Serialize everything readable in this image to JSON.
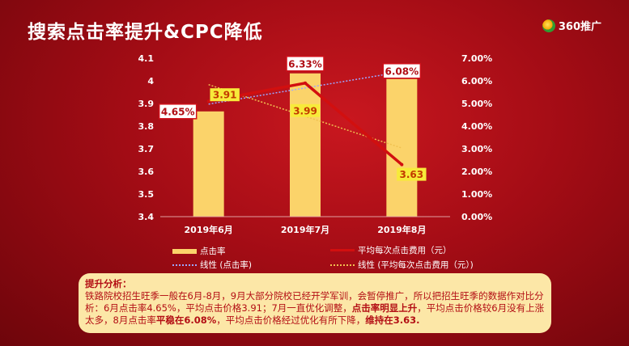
{
  "title": "搜索点击率提升&CPC降低",
  "brand": {
    "icon": "360-logo-icon",
    "label": "360推广"
  },
  "chart_data": {
    "type": "bar",
    "categories": [
      "2019年6月",
      "2019年7月",
      "2019年8月"
    ],
    "series": [
      {
        "name": "点击率",
        "type": "bar",
        "values": [
          4.65,
          6.33,
          6.08
        ],
        "labels": [
          "4.65%",
          "6.33%",
          "6.08%"
        ],
        "color": "#fbd36a"
      },
      {
        "name": "平均每次点击费用（元）",
        "type": "line",
        "values": [
          3.91,
          3.99,
          3.63
        ],
        "labels": [
          "3.91",
          "3.99",
          "3.63"
        ],
        "color": "#d20f0f"
      }
    ],
    "trendlines": [
      {
        "name": "线性 (点击率)",
        "color": "#9da6ff"
      },
      {
        "name": "线性 (平均每次点击费用（元）)",
        "color": "#f0c050"
      }
    ],
    "y_left": {
      "ticks": [
        "3.4",
        "3.5",
        "3.6",
        "3.7",
        "3.8",
        "3.9",
        "4",
        "4.1"
      ],
      "range": [
        3.4,
        4.1
      ]
    },
    "y_right": {
      "ticks": [
        "0.00%",
        "1.00%",
        "2.00%",
        "3.00%",
        "4.00%",
        "5.00%",
        "6.00%",
        "7.00%"
      ],
      "range": [
        0,
        7
      ]
    },
    "legend_position": "bottom"
  },
  "analysis": {
    "heading": "提升分析：",
    "parts": [
      "铁路院校招生旺季一般在6月-8月，9月大部分院校已经开学军训，会暂停推广，所以把招生旺季的数据作对比分析：6月点击率4.65%，平均点击价格3.91；7月一直优化调整，",
      "点击率明显上升",
      "，平均点击价格较6月没有上涨太多，8月点击率",
      "平稳在6.08%",
      "，平均点击价格经过优化有所下降，",
      "维持在3.63."
    ]
  }
}
